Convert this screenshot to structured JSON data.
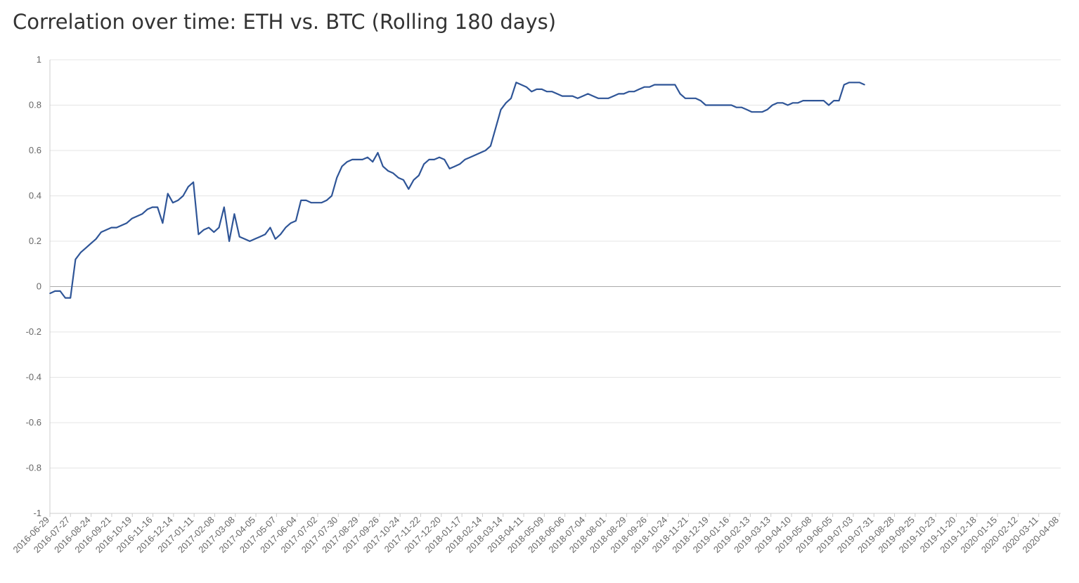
{
  "chart_data": {
    "type": "line",
    "title": "Correlation over time: ETH vs. BTC (Rolling 180 days)",
    "xlabel": "",
    "ylabel": "",
    "ylim": [
      -1,
      1
    ],
    "y_ticks": [
      "1",
      "0.8",
      "0.6",
      "0.4",
      "0.2",
      "0",
      "-0.2",
      "-0.4",
      "-0.6",
      "-0.8",
      "-1"
    ],
    "x_ticks": [
      "2016-06-29",
      "2016-07-27",
      "2016-08-24",
      "2016-09-21",
      "2016-10-19",
      "2016-11-16",
      "2016-12-14",
      "2017-01-11",
      "2017-02-08",
      "2017-03-08",
      "2017-04-05",
      "2017-05-07",
      "2017-06-04",
      "2017-07-02",
      "2017-07-30",
      "2017-08-29",
      "2017-09-26",
      "2017-10-24",
      "2017-11-22",
      "2017-12-20",
      "2018-01-17",
      "2018-02-14",
      "2018-03-14",
      "2018-04-11",
      "2018-05-09",
      "2018-06-06",
      "2018-07-04",
      "2018-08-01",
      "2018-08-29",
      "2018-09-26",
      "2018-10-24",
      "2018-11-21",
      "2018-12-19",
      "2019-01-16",
      "2019-02-13",
      "2019-03-13",
      "2019-04-10",
      "2019-05-08",
      "2019-06-05",
      "2019-07-03",
      "2019-07-31",
      "2019-08-28",
      "2019-09-25",
      "2019-10-23",
      "2019-11-20",
      "2019-12-18",
      "2020-01-15",
      "2020-02-12",
      "2020-03-11",
      "2020-04-08"
    ],
    "grid": true,
    "series": [
      {
        "color": "#2f5597",
        "x_start": "2016-06-29",
        "step_days": 7,
        "values": [
          -0.03,
          -0.02,
          -0.02,
          -0.05,
          -0.05,
          0.12,
          0.15,
          0.17,
          0.19,
          0.21,
          0.24,
          0.25,
          0.26,
          0.26,
          0.27,
          0.28,
          0.3,
          0.31,
          0.32,
          0.34,
          0.35,
          0.35,
          0.28,
          0.41,
          0.37,
          0.38,
          0.4,
          0.44,
          0.46,
          0.23,
          0.25,
          0.26,
          0.24,
          0.26,
          0.35,
          0.2,
          0.32,
          0.22,
          0.21,
          0.2,
          0.21,
          0.22,
          0.23,
          0.26,
          0.21,
          0.23,
          0.26,
          0.28,
          0.29,
          0.38,
          0.38,
          0.37,
          0.37,
          0.37,
          0.38,
          0.4,
          0.48,
          0.53,
          0.55,
          0.56,
          0.56,
          0.56,
          0.57,
          0.55,
          0.59,
          0.53,
          0.51,
          0.5,
          0.48,
          0.47,
          0.43,
          0.47,
          0.49,
          0.54,
          0.56,
          0.56,
          0.57,
          0.56,
          0.52,
          0.53,
          0.54,
          0.56,
          0.57,
          0.58,
          0.59,
          0.6,
          0.62,
          0.7,
          0.78,
          0.81,
          0.83,
          0.9,
          0.89,
          0.88,
          0.86,
          0.87,
          0.87,
          0.86,
          0.86,
          0.85,
          0.84,
          0.84,
          0.84,
          0.83,
          0.84,
          0.85,
          0.84,
          0.83,
          0.83,
          0.83,
          0.84,
          0.85,
          0.85,
          0.86,
          0.86,
          0.87,
          0.88,
          0.88,
          0.89,
          0.89,
          0.89,
          0.89,
          0.89,
          0.85,
          0.83,
          0.83,
          0.83,
          0.82,
          0.8,
          0.8,
          0.8,
          0.8,
          0.8,
          0.8,
          0.79,
          0.79,
          0.78,
          0.77,
          0.77,
          0.77,
          0.78,
          0.8,
          0.81,
          0.81,
          0.8,
          0.81,
          0.81,
          0.82,
          0.82,
          0.82,
          0.82,
          0.82,
          0.8,
          0.82,
          0.82,
          0.89,
          0.9,
          0.9,
          0.9,
          0.89
        ]
      }
    ]
  }
}
